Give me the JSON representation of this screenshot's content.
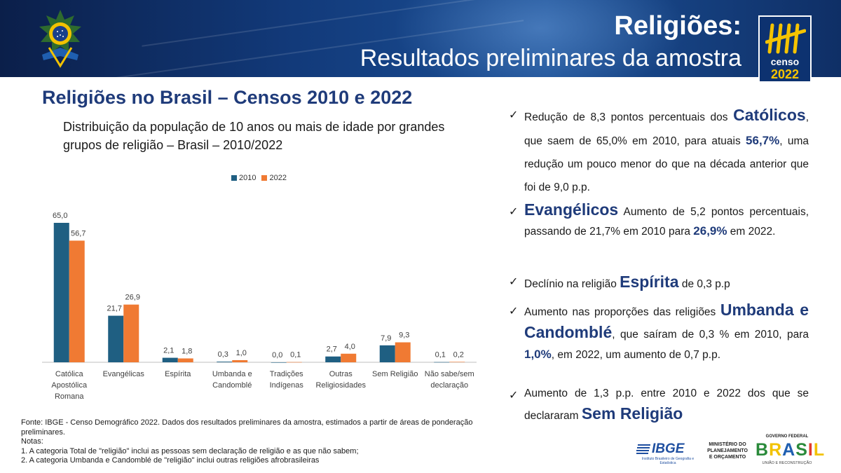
{
  "header": {
    "title": "Religiões:",
    "subtitle": "Resultados preliminares da amostra"
  },
  "censo_logo": {
    "word": "censo",
    "year": "2022"
  },
  "chart_heading": "Religiões no Brasil – Censos 2010 e 2022",
  "chart_subtitle": "Distribuição da população de 10 anos ou mais de idade por grandes grupos de religião – Brasil – 2010/2022",
  "colors": {
    "series_2010": "#1f5f82",
    "series_2022": "#f07a33",
    "accent": "#1f3b7a"
  },
  "chart_data": {
    "type": "bar",
    "title": "",
    "xlabel": "",
    "ylabel": "",
    "ylim": [
      0,
      70
    ],
    "grid": false,
    "legend": "top-center",
    "categories": [
      [
        "Católica",
        "Apostólica",
        "Romana"
      ],
      [
        "Evangélicas"
      ],
      [
        "Espírita"
      ],
      [
        "Umbanda e",
        "Candomblé"
      ],
      [
        "Tradições",
        "Indígenas"
      ],
      [
        "Outras",
        "Religiosidades"
      ],
      [
        "Sem Religião"
      ],
      [
        "Não sabe/sem",
        "declaração"
      ]
    ],
    "series": [
      {
        "name": "2010",
        "values": [
          65.0,
          21.7,
          2.1,
          0.3,
          0.0,
          2.7,
          7.9,
          0.1
        ],
        "labels": [
          "65,0",
          "21,7",
          "2,1",
          "0,3",
          "0,0",
          "2,7",
          "7,9",
          "0,1"
        ]
      },
      {
        "name": "2022",
        "values": [
          56.7,
          26.9,
          1.8,
          1.0,
          0.1,
          4.0,
          9.3,
          0.2
        ],
        "labels": [
          "56,7",
          "26,9",
          "1,8",
          "1,0",
          "0,1",
          "4,0",
          "9,3",
          "0,2"
        ]
      }
    ]
  },
  "bullets": {
    "b1": {
      "p1": "Redução de 8,3 pontos percentuais dos",
      "hl1": "Católicos",
      "p2": ", que saem de 65,0% em 2010, para atuais",
      "num": "56,7%",
      "p3": ",  uma redução um pouco menor do que na década anterior que foi de 9,0 p.p."
    },
    "b2": {
      "hl1": "Evangélicos",
      "p1": " Aumento de 5,2 pontos percentuais, passando de 21,7% em 2010 para",
      "num": "26,9%",
      "p2": " em 2022."
    },
    "b3": {
      "p1": "Declínio na religião",
      "hl1": "Espírita",
      "p2": " de 0,3 p.p"
    },
    "b4": {
      "p1": "Aumento nas proporções das religiões",
      "hl1": "Umbanda e Candomblé",
      "p2": ", que saíram de 0,3 % em 2010, para",
      "num": "1,0%",
      "p3": ", em 2022, um aumento de 0,7 p.p."
    },
    "b5": {
      "p1": "Aumento de 1,3 p.p. entre 2010 e 2022 dos que se declararam",
      "hl1": "Sem Religião"
    }
  },
  "footnote": {
    "source": "Fonte: IBGE - Censo Demográfico 2022. Dados dos resultados preliminares da amostra, estimados a partir de áreas de ponderação preliminares.",
    "notes_label": "Notas:",
    "note1": "1. A categoria Total de \"religião\" inclui as pessoas sem declaração de religião e as que não sabem;",
    "note2": "2. A categoria Umbanda e Candomblé de \"religião\" inclui outras religiões afrobrasileiras"
  },
  "footer": {
    "ibge": "IBGE",
    "ibge_sub": "Instituto Brasileiro de Geografia e Estatística",
    "ministerio": [
      "MINISTÉRIO DO",
      "PLANEJAMENTO",
      "E ORÇAMENTO"
    ],
    "gov_top": "GOVERNO FEDERAL",
    "gov_word": "BRASIL",
    "gov_bottom": "UNIÃO E RECONSTRUÇÃO"
  }
}
